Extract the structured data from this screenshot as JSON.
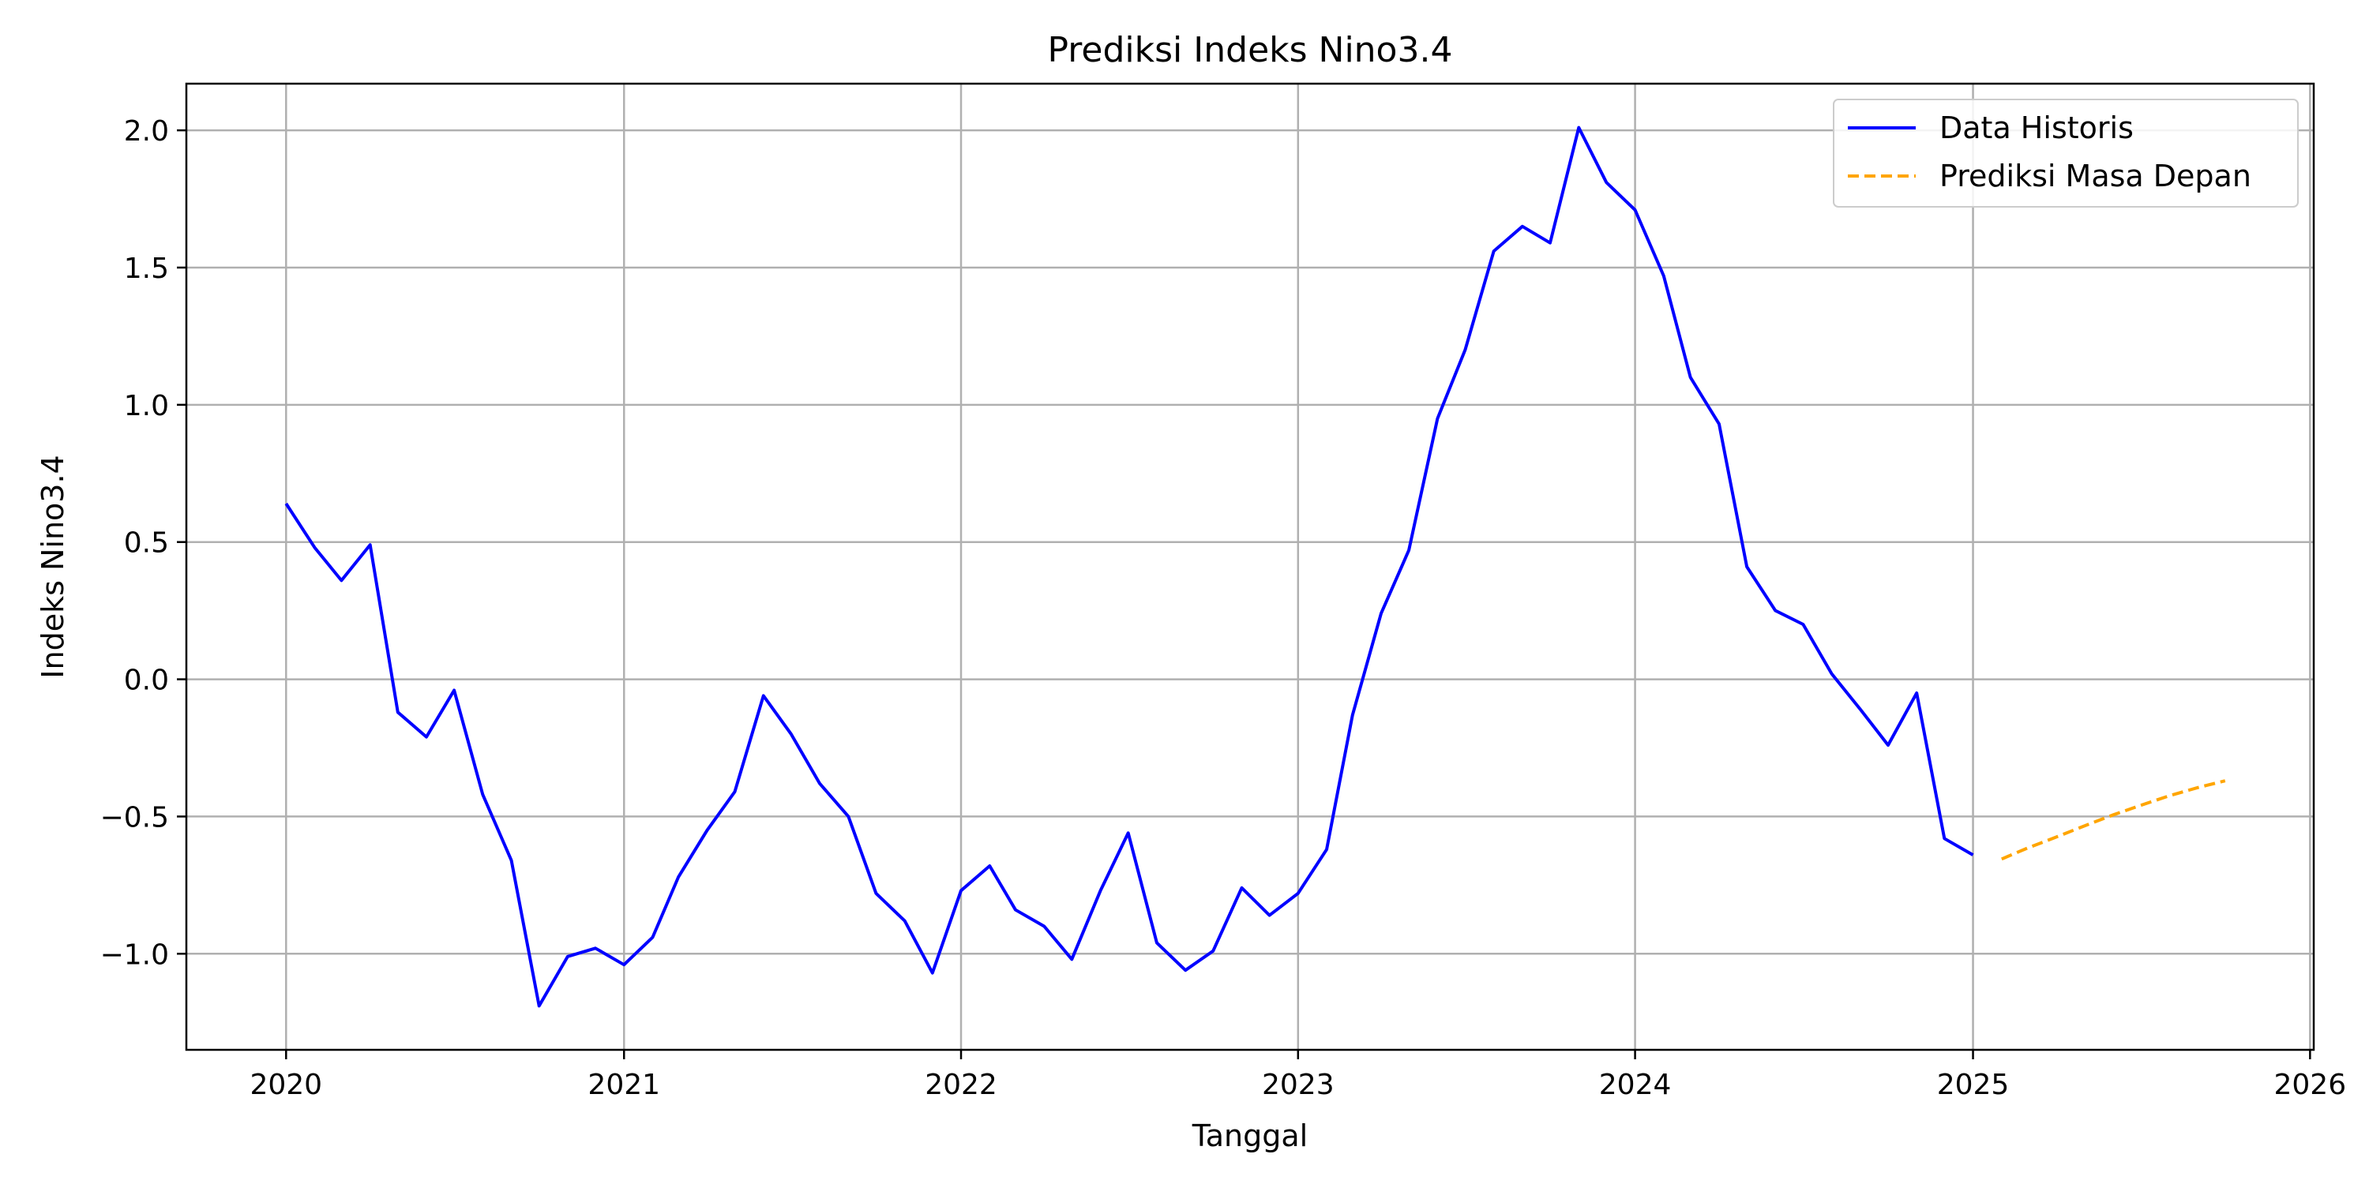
{
  "chart_data": {
    "type": "line",
    "title": "Prediksi Indeks Nino3.4",
    "xlabel": "Tanggal",
    "ylabel": "Indeks Nino3.4",
    "xlim": [
      "2019-09-15",
      "2026-01-05"
    ],
    "ylim": [
      -1.35,
      2.17
    ],
    "x_ticks": [
      "2020",
      "2021",
      "2022",
      "2023",
      "2024",
      "2025",
      "2026"
    ],
    "y_ticks": [
      "2.0",
      "1.5",
      "1.0",
      "0.5",
      "0.0",
      "−0.5",
      "−1.0"
    ],
    "grid": true,
    "legend_position": "top-right",
    "series": [
      {
        "name": "Data Historis",
        "color": "#0000ff",
        "style": "solid",
        "points": [
          [
            "2020-01-01",
            0.64
          ],
          [
            "2020-02-01",
            0.48
          ],
          [
            "2020-03-01",
            0.36
          ],
          [
            "2020-04-01",
            0.49
          ],
          [
            "2020-05-01",
            -0.12
          ],
          [
            "2020-06-01",
            -0.21
          ],
          [
            "2020-07-01",
            -0.04
          ],
          [
            "2020-08-01",
            -0.42
          ],
          [
            "2020-09-01",
            -0.66
          ],
          [
            "2020-10-01",
            -1.19
          ],
          [
            "2020-11-01",
            -1.01
          ],
          [
            "2020-12-01",
            -0.98
          ],
          [
            "2021-01-01",
            -1.04
          ],
          [
            "2021-02-01",
            -0.94
          ],
          [
            "2021-03-01",
            -0.72
          ],
          [
            "2021-04-01",
            -0.55
          ],
          [
            "2021-05-01",
            -0.41
          ],
          [
            "2021-06-01",
            -0.06
          ],
          [
            "2021-07-01",
            -0.2
          ],
          [
            "2021-08-01",
            -0.38
          ],
          [
            "2021-09-01",
            -0.5
          ],
          [
            "2021-10-01",
            -0.78
          ],
          [
            "2021-11-01",
            -0.88
          ],
          [
            "2021-12-01",
            -1.07
          ],
          [
            "2022-01-01",
            -0.77
          ],
          [
            "2022-02-01",
            -0.68
          ],
          [
            "2022-03-01",
            -0.84
          ],
          [
            "2022-04-01",
            -0.9
          ],
          [
            "2022-05-01",
            -1.02
          ],
          [
            "2022-06-01",
            -0.77
          ],
          [
            "2022-07-01",
            -0.56
          ],
          [
            "2022-08-01",
            -0.96
          ],
          [
            "2022-09-01",
            -1.06
          ],
          [
            "2022-10-01",
            -0.99
          ],
          [
            "2022-11-01",
            -0.76
          ],
          [
            "2022-12-01",
            -0.86
          ],
          [
            "2023-01-01",
            -0.78
          ],
          [
            "2023-02-01",
            -0.62
          ],
          [
            "2023-03-01",
            -0.13
          ],
          [
            "2023-04-01",
            0.24
          ],
          [
            "2023-05-01",
            0.47
          ],
          [
            "2023-06-01",
            0.95
          ],
          [
            "2023-07-01",
            1.2
          ],
          [
            "2023-08-01",
            1.56
          ],
          [
            "2023-09-01",
            1.65
          ],
          [
            "2023-10-01",
            1.59
          ],
          [
            "2023-11-01",
            2.01
          ],
          [
            "2023-12-01",
            1.81
          ],
          [
            "2024-01-01",
            1.71
          ],
          [
            "2024-02-01",
            1.47
          ],
          [
            "2024-03-01",
            1.1
          ],
          [
            "2024-04-01",
            0.93
          ],
          [
            "2024-05-01",
            0.41
          ],
          [
            "2024-06-01",
            0.25
          ],
          [
            "2024-07-01",
            0.2
          ],
          [
            "2024-08-01",
            0.02
          ],
          [
            "2024-09-01",
            -0.11
          ],
          [
            "2024-10-01",
            -0.24
          ],
          [
            "2024-11-01",
            -0.05
          ],
          [
            "2024-12-01",
            -0.58
          ],
          [
            "2025-01-01",
            -0.64
          ]
        ]
      },
      {
        "name": "Prediksi Masa Depan",
        "color": "#ffa500",
        "style": "dashed",
        "points": [
          [
            "2025-02-01",
            -0.655
          ],
          [
            "2025-03-01",
            -0.615
          ],
          [
            "2025-04-01",
            -0.575
          ],
          [
            "2025-05-01",
            -0.535
          ],
          [
            "2025-06-01",
            -0.495
          ],
          [
            "2025-07-01",
            -0.46
          ],
          [
            "2025-08-01",
            -0.425
          ],
          [
            "2025-09-01",
            -0.395
          ],
          [
            "2025-10-01",
            -0.37
          ]
        ]
      }
    ]
  }
}
